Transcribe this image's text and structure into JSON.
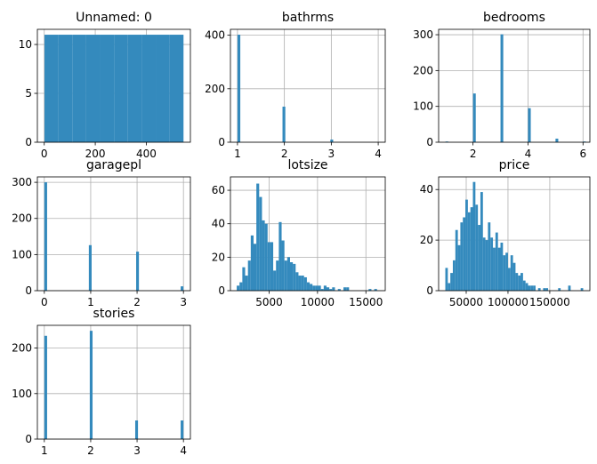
{
  "chart_data": [
    {
      "type": "bar",
      "title": "Unnamed: 0",
      "xlim": [
        -27,
        573
      ],
      "ylim": [
        0,
        11.55
      ],
      "xticks": [
        0,
        200,
        400
      ],
      "yticks": [
        0,
        5,
        10
      ],
      "grid": true,
      "bins": [
        [
          1,
          55.5,
          11
        ],
        [
          55.5,
          110,
          11
        ],
        [
          110,
          164.5,
          11
        ],
        [
          164.5,
          219,
          11
        ],
        [
          219,
          273.5,
          11
        ],
        [
          273.5,
          328,
          11
        ],
        [
          328,
          382.5,
          11
        ],
        [
          382.5,
          437,
          11
        ],
        [
          437,
          491.5,
          11
        ],
        [
          491.5,
          546,
          11
        ]
      ]
    },
    {
      "type": "bar",
      "title": "bathrms",
      "xlim": [
        0.85,
        4.15
      ],
      "ylim": [
        0,
        422
      ],
      "xticks": [
        1,
        2,
        3,
        4
      ],
      "yticks": [
        0,
        200,
        400
      ],
      "grid": true,
      "bins": [
        [
          1,
          1.06,
          402
        ],
        [
          1.96,
          2.02,
          133
        ],
        [
          2.98,
          3.04,
          10
        ]
      ]
    },
    {
      "type": "bar",
      "title": "bedrooms",
      "xlim": [
        0.75,
        6.25
      ],
      "ylim": [
        0,
        315
      ],
      "xticks": [
        2,
        4,
        6
      ],
      "yticks": [
        0,
        100,
        200,
        300
      ],
      "grid": true,
      "bins": [
        [
          1,
          1.1,
          2
        ],
        [
          2,
          2.1,
          136
        ],
        [
          3,
          3.1,
          301
        ],
        [
          4,
          4.1,
          95
        ],
        [
          5,
          5.1,
          10
        ],
        [
          6,
          6.1,
          2
        ]
      ]
    },
    {
      "type": "bar",
      "title": "garagepl",
      "xlim": [
        -0.15,
        3.15
      ],
      "ylim": [
        0,
        315
      ],
      "xticks": [
        0,
        1,
        2,
        3
      ],
      "yticks": [
        0,
        100,
        200,
        300
      ],
      "grid": true,
      "bins": [
        [
          0,
          0.06,
          300
        ],
        [
          0.96,
          1.02,
          126
        ],
        [
          1.98,
          2.04,
          108
        ],
        [
          2.94,
          3.0,
          12
        ]
      ]
    },
    {
      "type": "bar",
      "title": "lotsize",
      "xlim": [
        1000,
        17000
      ],
      "ylim": [
        0,
        68
      ],
      "xticks": [
        5000,
        10000,
        15000
      ],
      "yticks": [
        0,
        20,
        40,
        60
      ],
      "grid": true,
      "bins": [
        [
          1650,
          1940,
          3
        ],
        [
          1940,
          2230,
          5
        ],
        [
          2230,
          2520,
          14
        ],
        [
          2520,
          2810,
          9
        ],
        [
          2810,
          3100,
          18
        ],
        [
          3100,
          3390,
          33
        ],
        [
          3390,
          3680,
          28
        ],
        [
          3680,
          3970,
          64
        ],
        [
          3970,
          4260,
          56
        ],
        [
          4260,
          4550,
          42
        ],
        [
          4550,
          4840,
          40
        ],
        [
          4840,
          5130,
          29
        ],
        [
          5130,
          5420,
          29
        ],
        [
          5420,
          5710,
          12
        ],
        [
          5710,
          6000,
          18
        ],
        [
          6000,
          6290,
          41
        ],
        [
          6290,
          6580,
          30
        ],
        [
          6580,
          6870,
          18
        ],
        [
          6870,
          7160,
          20
        ],
        [
          7160,
          7450,
          17
        ],
        [
          7450,
          7740,
          16
        ],
        [
          7740,
          8030,
          11
        ],
        [
          8030,
          8320,
          9
        ],
        [
          8320,
          8610,
          9
        ],
        [
          8610,
          8900,
          8
        ],
        [
          8900,
          9190,
          5
        ],
        [
          9190,
          9480,
          4
        ],
        [
          9480,
          9770,
          3
        ],
        [
          9770,
          10060,
          3
        ],
        [
          10060,
          10350,
          3
        ],
        [
          10350,
          10640,
          1
        ],
        [
          10640,
          10930,
          3
        ],
        [
          10930,
          11220,
          2
        ],
        [
          11220,
          11510,
          1
        ],
        [
          11510,
          11800,
          2
        ],
        [
          12100,
          12390,
          1
        ],
        [
          12680,
          12970,
          2
        ],
        [
          12970,
          13260,
          2
        ],
        [
          15280,
          15570,
          1
        ],
        [
          15860,
          16150,
          1
        ]
      ]
    },
    {
      "type": "bar",
      "title": "price",
      "xlim": [
        17000,
        198000
      ],
      "ylim": [
        0,
        45
      ],
      "xticks": [
        50000,
        100000,
        150000
      ],
      "yticks": [
        0,
        20,
        40
      ],
      "grid": true,
      "bins": [
        [
          25000,
          28000,
          9
        ],
        [
          28000,
          31000,
          3
        ],
        [
          31000,
          34000,
          7
        ],
        [
          34000,
          37000,
          12
        ],
        [
          37000,
          40000,
          24
        ],
        [
          40000,
          43000,
          18
        ],
        [
          43000,
          46000,
          27
        ],
        [
          46000,
          49000,
          29
        ],
        [
          49000,
          52000,
          36
        ],
        [
          52000,
          55000,
          31
        ],
        [
          55000,
          58000,
          33
        ],
        [
          58000,
          61000,
          43
        ],
        [
          61000,
          64000,
          34
        ],
        [
          64000,
          67000,
          26
        ],
        [
          67000,
          70000,
          39
        ],
        [
          70000,
          73000,
          21
        ],
        [
          73000,
          76000,
          20
        ],
        [
          76000,
          79000,
          27
        ],
        [
          79000,
          82000,
          21
        ],
        [
          82000,
          85000,
          17
        ],
        [
          85000,
          88000,
          23
        ],
        [
          88000,
          91000,
          17
        ],
        [
          91000,
          94000,
          19
        ],
        [
          94000,
          97000,
          14
        ],
        [
          97000,
          100000,
          15
        ],
        [
          100000,
          103000,
          9
        ],
        [
          103000,
          106000,
          14
        ],
        [
          106000,
          109000,
          11
        ],
        [
          109000,
          112000,
          7
        ],
        [
          112000,
          115000,
          6
        ],
        [
          115000,
          118000,
          7
        ],
        [
          118000,
          121000,
          4
        ],
        [
          121000,
          124000,
          3
        ],
        [
          124000,
          127000,
          2
        ],
        [
          127000,
          130000,
          2
        ],
        [
          130000,
          133000,
          2
        ],
        [
          136000,
          139000,
          1
        ],
        [
          142000,
          145000,
          1
        ],
        [
          145000,
          148000,
          1
        ],
        [
          160000,
          163000,
          1
        ],
        [
          172000,
          175000,
          2
        ],
        [
          187000,
          190000,
          1
        ]
      ]
    },
    {
      "type": "bar",
      "title": "stories",
      "xlim": [
        0.85,
        4.15
      ],
      "ylim": [
        0,
        250
      ],
      "xticks": [
        1,
        2,
        3,
        4
      ],
      "yticks": [
        0,
        100,
        200
      ],
      "grid": true,
      "bins": [
        [
          1,
          1.06,
          227
        ],
        [
          1.98,
          2.04,
          238
        ],
        [
          2.96,
          3.02,
          41
        ],
        [
          3.94,
          4.0,
          41
        ]
      ]
    }
  ],
  "colors": {
    "bar": "#348ABD",
    "grid": "#b0b0b0",
    "axis": "#000000"
  }
}
